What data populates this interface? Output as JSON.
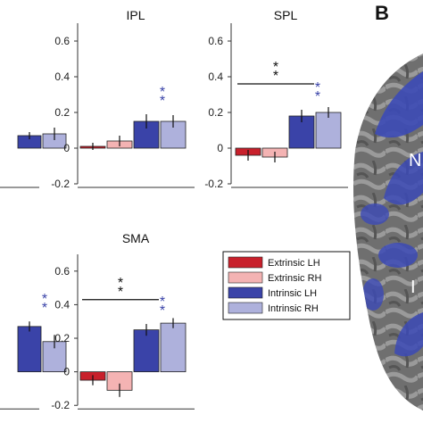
{
  "colors": {
    "extrinsic_lh": "#c8202b",
    "extrinsic_rh": "#f4b3b3",
    "intrinsic_lh": "#3a43a8",
    "intrinsic_rh": "#aeb1dc",
    "star_black": "#111111",
    "star_blue": "#3a43a8"
  },
  "panel_letter": "B",
  "legend": [
    "Extrinsic LH",
    "Extrinsic RH",
    "Intrinsic LH",
    "Intrinsic RH"
  ],
  "brain_labels": [
    "N",
    "I"
  ],
  "chart_data": [
    {
      "type": "bar",
      "title": "",
      "partial": true,
      "categories": [
        "Extrinsic LH",
        "Extrinsic RH",
        "Intrinsic LH",
        "Intrinsic RH"
      ],
      "values": [
        null,
        null,
        0.07,
        0.08
      ],
      "errors": [
        null,
        null,
        0.02,
        0.035
      ],
      "yticks": [
        0,
        -0.2
      ],
      "ylim": [
        -0.22,
        0.7
      ],
      "stars_blue": []
    },
    {
      "type": "bar",
      "title": "IPL",
      "categories": [
        "Extrinsic LH",
        "Extrinsic RH",
        "Intrinsic LH",
        "Intrinsic RH"
      ],
      "values": [
        0.01,
        0.04,
        0.15,
        0.15
      ],
      "errors": [
        0.02,
        0.03,
        0.04,
        0.035
      ],
      "yticks": [
        0.6,
        0.4,
        0.2,
        0,
        -0.2
      ],
      "ylim": [
        -0.22,
        0.7
      ],
      "stars_blue": [
        2
      ]
    },
    {
      "type": "bar",
      "title": "SPL",
      "categories": [
        "Extrinsic LH",
        "Extrinsic RH",
        "Intrinsic LH",
        "Intrinsic RH"
      ],
      "values": [
        -0.04,
        -0.05,
        0.18,
        0.2
      ],
      "errors": [
        0.03,
        0.03,
        0.035,
        0.03
      ],
      "yticks": [
        0.6,
        0.4,
        0.2,
        0,
        -0.2
      ],
      "ylim": [
        -0.22,
        0.7
      ],
      "stars_blue": [
        2
      ],
      "bracket": {
        "from": 0,
        "to": 2,
        "y": 0.36
      }
    },
    {
      "type": "bar",
      "title": "",
      "partial": true,
      "categories": [
        "Extrinsic LH",
        "Extrinsic RH",
        "Intrinsic LH",
        "Intrinsic RH"
      ],
      "values": [
        null,
        null,
        0.27,
        0.18
      ],
      "errors": [
        null,
        null,
        0.03,
        0.04
      ],
      "yticks": [
        0,
        -0.2
      ],
      "ylim": [
        -0.22,
        0.7
      ],
      "stars_blue": [
        2
      ]
    },
    {
      "type": "bar",
      "title": "SMA",
      "categories": [
        "Extrinsic LH",
        "Extrinsic RH",
        "Intrinsic LH",
        "Intrinsic RH"
      ],
      "values": [
        -0.05,
        -0.11,
        0.25,
        0.29
      ],
      "errors": [
        0.03,
        0.04,
        0.035,
        0.03
      ],
      "yticks": [
        0.6,
        0.4,
        0.2,
        0,
        -0.2
      ],
      "ylim": [
        -0.22,
        0.7
      ],
      "stars_blue": [
        2
      ],
      "bracket": {
        "from": 0,
        "to": 2,
        "y": 0.43
      }
    }
  ]
}
